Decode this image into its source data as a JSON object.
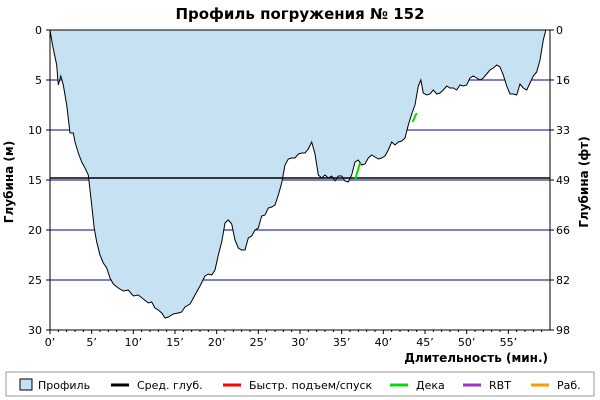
{
  "chart_data": {
    "type": "area",
    "title": "Профиль погружения № 152",
    "xlabel": "Длительность (мин.)",
    "ylabel_left": "Глубина (м)",
    "ylabel_right": "Глубина (фт)",
    "xlim": [
      0,
      60
    ],
    "ylim": [
      0,
      30
    ],
    "y_inverted": true,
    "x_ticks": [
      "0’",
      "5’",
      "10’",
      "15’",
      "20’",
      "25’",
      "30’",
      "35’",
      "40’",
      "45’",
      "50’",
      "55’"
    ],
    "x_tick_values": [
      0,
      5,
      10,
      15,
      20,
      25,
      30,
      35,
      40,
      45,
      50,
      55
    ],
    "y_ticks_left": [
      "0",
      "5",
      "10",
      "15",
      "20",
      "25",
      "30"
    ],
    "y_tick_values_left": [
      0,
      5,
      10,
      15,
      20,
      25,
      30
    ],
    "y_ticks_right": [
      "0",
      "16",
      "33",
      "49",
      "66",
      "82",
      "98"
    ],
    "grid": "horizontal",
    "avg_depth": 14.8,
    "profile": {
      "x": [
        0,
        0.3,
        0.8,
        1.0,
        1.3,
        1.6,
        2.0,
        2.4,
        2.8,
        3.0,
        3.4,
        3.8,
        4.2,
        4.6,
        5.0,
        5.3,
        5.6,
        6.0,
        6.4,
        6.8,
        7.2,
        7.6,
        8.2,
        8.8,
        9.4,
        10.0,
        10.6,
        11.2,
        11.8,
        12.2,
        12.6,
        13.0,
        13.4,
        13.8,
        14.2,
        14.8,
        15.4,
        15.8,
        16.2,
        16.8,
        17.4,
        18.0,
        18.6,
        19.0,
        19.4,
        19.8,
        20.2,
        20.6,
        21.0,
        21.4,
        21.8,
        22.2,
        22.6,
        23.0,
        23.4,
        23.8,
        24.2,
        24.6,
        25.0,
        25.4,
        25.8,
        26.2,
        26.6,
        27.0,
        27.4,
        27.8,
        28.2,
        28.6,
        29.0,
        29.4,
        29.8,
        30.2,
        30.6,
        31.0,
        31.4,
        31.8,
        32.2,
        32.6,
        33.0,
        33.4,
        33.8,
        34.2,
        34.6,
        35.0,
        35.4,
        35.8,
        36.2,
        36.6,
        37.0,
        37.4,
        37.8,
        38.2,
        38.6,
        39.0,
        39.4,
        39.8,
        40.2,
        40.6,
        41.0,
        41.4,
        41.8,
        42.2,
        42.6,
        43.0,
        43.4,
        43.8,
        44.2,
        44.5,
        44.8,
        45.2,
        45.6,
        46.0,
        46.4,
        46.8,
        47.2,
        47.6,
        48.0,
        48.4,
        48.8,
        49.2,
        49.6,
        50.0,
        50.4,
        50.8,
        51.2,
        51.6,
        52.0,
        52.4,
        52.8,
        53.2,
        53.6,
        54.0,
        54.4,
        54.8,
        55.2,
        55.6,
        56.0,
        56.4,
        56.8,
        57.2,
        57.6,
        58.0,
        58.4,
        58.8,
        59.2,
        59.5
      ],
      "y": [
        0,
        1.5,
        3.5,
        5.5,
        4.6,
        5.5,
        7.5,
        10.3,
        10.3,
        11.2,
        12.3,
        13.2,
        13.8,
        14.5,
        17.5,
        19.8,
        21.2,
        22.5,
        23.3,
        23.8,
        24.8,
        25.4,
        25.8,
        26.1,
        26.0,
        26.6,
        26.5,
        26.9,
        27.3,
        27.2,
        27.8,
        28.0,
        28.3,
        28.8,
        28.7,
        28.4,
        28.3,
        28.2,
        27.7,
        27.4,
        26.5,
        25.6,
        24.6,
        24.4,
        24.5,
        24.0,
        22.5,
        21.2,
        19.3,
        19.0,
        19.4,
        21.0,
        21.8,
        22.0,
        22.0,
        20.8,
        20.6,
        20.0,
        19.8,
        18.6,
        18.5,
        17.8,
        17.7,
        17.5,
        16.5,
        15.3,
        13.5,
        12.9,
        12.8,
        12.8,
        12.4,
        12.3,
        12.3,
        11.9,
        11.2,
        12.4,
        14.5,
        14.8,
        14.5,
        14.8,
        14.6,
        15.1,
        14.6,
        14.6,
        15.1,
        15.2,
        14.5,
        13.2,
        13.0,
        13.5,
        13.4,
        12.8,
        12.5,
        12.7,
        12.9,
        12.8,
        12.6,
        12.0,
        11.2,
        11.5,
        11.2,
        11.1,
        10.8,
        9.5,
        8.4,
        7.5,
        5.6,
        5.0,
        6.3,
        6.5,
        6.4,
        6.0,
        6.4,
        6.3,
        6.0,
        5.6,
        5.8,
        5.8,
        6.0,
        5.5,
        5.6,
        5.5,
        4.8,
        4.6,
        4.8,
        5.0,
        4.8,
        4.4,
        4.0,
        3.8,
        3.5,
        3.7,
        4.5,
        5.6,
        6.4,
        6.4,
        6.5,
        5.4,
        5.8,
        6.0,
        5.3,
        4.6,
        4.2,
        3.0,
        1.0,
        0
      ]
    },
    "decompression_segments": [
      {
        "x": [
          36.6,
          37.2
        ],
        "y": [
          15.0,
          13.3
        ]
      },
      {
        "x": [
          43.5,
          44.0
        ],
        "y": [
          9.2,
          8.3
        ]
      }
    ],
    "legend": [
      {
        "label": "Профиль",
        "kind": "box",
        "color": "#c5e1f2"
      },
      {
        "label": "Сред. глуб.",
        "kind": "line",
        "color": "#000000"
      },
      {
        "label": "Быстр. подъем/спуск",
        "kind": "line",
        "color": "#ff0000"
      },
      {
        "label": "Дека",
        "kind": "line",
        "color": "#00dd00"
      },
      {
        "label": "RBT",
        "kind": "line",
        "color": "#9933cc"
      },
      {
        "label": "Раб.",
        "kind": "line",
        "color": "#ff9900"
      }
    ],
    "legend_position": "bottom",
    "colors": {
      "fill": "#c5e1f2",
      "outline": "#000000",
      "grid": "#0000a0",
      "avg": "#000000",
      "deco": "#00dd00"
    }
  }
}
